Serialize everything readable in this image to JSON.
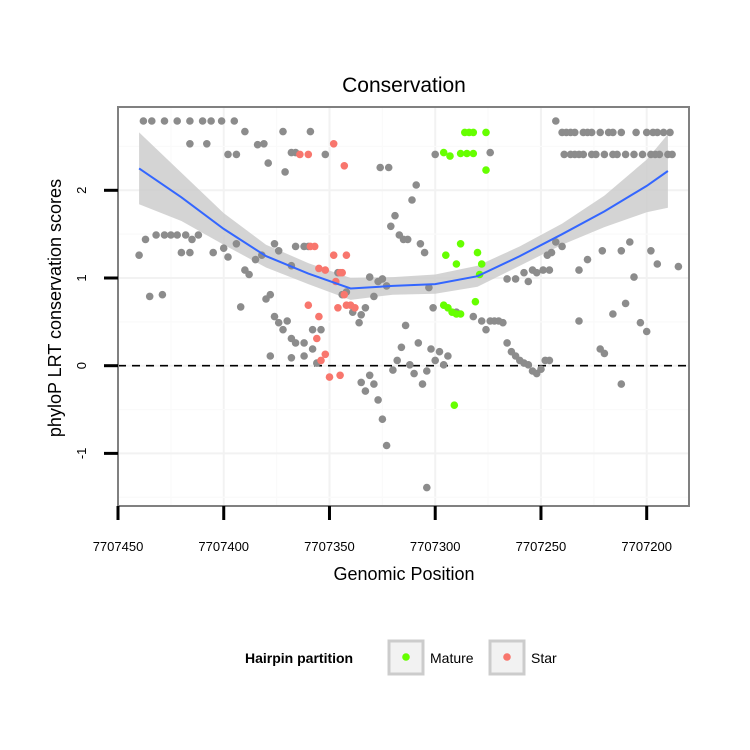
{
  "chart_data": {
    "type": "scatter",
    "title": "Conservation",
    "xlabel": "Genomic Position",
    "ylabel": "phyloP LRT conservation scores",
    "xlim": [
      7707450,
      7707180
    ],
    "x_reversed": true,
    "ylim": [
      -1.6,
      2.95
    ],
    "x_ticks": [
      7707450,
      7707400,
      7707350,
      7707300,
      7707250,
      7707200
    ],
    "y_ticks": [
      -1,
      0,
      1,
      2
    ],
    "grid": true,
    "reference_line": {
      "y": 0,
      "style": "dashed"
    },
    "legend": {
      "title": "Hairpin partition",
      "placement": "bottom",
      "entries": [
        {
          "label": "Mature",
          "color": "#66ff00"
        },
        {
          "label": "Star",
          "color": "#f8766d"
        }
      ]
    },
    "colors": {
      "other": "#8c8c8c",
      "mature": "#66ff00",
      "star": "#f8766d",
      "smooth": "#3366ff",
      "ribbon": "#cccccc"
    },
    "smooth_curve": {
      "x": [
        7707440,
        7707420,
        7707400,
        7707380,
        7707360,
        7707340,
        7707320,
        7707300,
        7707280,
        7707260,
        7707240,
        7707220,
        7707200,
        7707190
      ],
      "y": [
        2.25,
        1.92,
        1.56,
        1.25,
        1.05,
        0.88,
        0.91,
        0.93,
        1.02,
        1.25,
        1.5,
        1.76,
        2.05,
        2.22
      ],
      "lower": [
        1.84,
        1.65,
        1.38,
        1.12,
        0.93,
        0.75,
        0.81,
        0.82,
        0.9,
        1.14,
        1.38,
        1.58,
        1.75,
        1.8
      ],
      "upper": [
        2.66,
        2.2,
        1.74,
        1.38,
        1.17,
        1.0,
        1.01,
        1.04,
        1.14,
        1.36,
        1.62,
        1.94,
        2.35,
        2.64
      ]
    },
    "series": [
      {
        "name": "",
        "points": [
          [
            7707438,
            2.79
          ],
          [
            7707434,
            2.79
          ],
          [
            7707428,
            2.79
          ],
          [
            7707422,
            2.79
          ],
          [
            7707416,
            2.79
          ],
          [
            7707410,
            2.79
          ],
          [
            7707406,
            2.79
          ],
          [
            7707401,
            2.79
          ],
          [
            7707395,
            2.79
          ],
          [
            7707440,
            1.26
          ],
          [
            7707437,
            1.44
          ],
          [
            7707435,
            0.79
          ],
          [
            7707432,
            1.49
          ],
          [
            7707428,
            1.49
          ],
          [
            7707425,
            1.49
          ],
          [
            7707422,
            1.49
          ],
          [
            7707418,
            1.49
          ],
          [
            7707415,
            1.44
          ],
          [
            7707412,
            1.49
          ],
          [
            7707429,
            0.81
          ],
          [
            7707420,
            1.29
          ],
          [
            7707416,
            1.29
          ],
          [
            7707405,
            1.29
          ],
          [
            7707400,
            1.34
          ],
          [
            7707398,
            1.24
          ],
          [
            7707394,
            1.39
          ],
          [
            7707416,
            2.53
          ],
          [
            7707408,
            2.53
          ],
          [
            7707398,
            2.41
          ],
          [
            7707394,
            2.41
          ],
          [
            7707390,
            2.67
          ],
          [
            7707384,
            2.52
          ],
          [
            7707381,
            2.53
          ],
          [
            7707372,
            2.67
          ],
          [
            7707368,
            2.43
          ],
          [
            7707366,
            2.43
          ],
          [
            7707359,
            2.67
          ],
          [
            7707352,
            2.41
          ],
          [
            7707392,
            0.67
          ],
          [
            7707390,
            1.09
          ],
          [
            7707388,
            1.04
          ],
          [
            7707385,
            1.21
          ],
          [
            7707382,
            1.26
          ],
          [
            7707380,
            0.76
          ],
          [
            7707379,
            2.31
          ],
          [
            7707376,
            1.39
          ],
          [
            7707374,
            1.31
          ],
          [
            7707371,
            2.21
          ],
          [
            7707368,
            1.14
          ],
          [
            7707366,
            1.36
          ],
          [
            7707362,
            1.36
          ],
          [
            7707360,
            1.36
          ],
          [
            7707378,
            0.81
          ],
          [
            7707376,
            0.56
          ],
          [
            7707374,
            0.49
          ],
          [
            7707372,
            0.41
          ],
          [
            7707370,
            0.51
          ],
          [
            7707368,
            0.31
          ],
          [
            7707366,
            0.26
          ],
          [
            7707362,
            0.26
          ],
          [
            7707358,
            0.19
          ],
          [
            7707378,
            0.11
          ],
          [
            7707368,
            0.09
          ],
          [
            7707362,
            0.11
          ],
          [
            7707358,
            0.41
          ],
          [
            7707354,
            0.41
          ],
          [
            7707356,
            0.03
          ],
          [
            7707346,
            1.06
          ],
          [
            7707344,
            0.81
          ],
          [
            7707342,
            0.84
          ],
          [
            7707339,
            0.61
          ],
          [
            7707336,
            0.49
          ],
          [
            7707335,
            0.58
          ],
          [
            7707333,
            0.66
          ],
          [
            7707331,
            1.01
          ],
          [
            7707329,
            0.79
          ],
          [
            7707327,
            0.96
          ],
          [
            7707325,
            0.99
          ],
          [
            7707323,
            0.91
          ],
          [
            7707321,
            1.59
          ],
          [
            7707319,
            1.71
          ],
          [
            7707317,
            1.49
          ],
          [
            7707315,
            1.44
          ],
          [
            7707313,
            1.44
          ],
          [
            7707311,
            1.89
          ],
          [
            7707309,
            2.06
          ],
          [
            7707307,
            1.39
          ],
          [
            7707305,
            1.29
          ],
          [
            7707303,
            0.89
          ],
          [
            7707301,
            0.66
          ],
          [
            7707335,
            -0.19
          ],
          [
            7707333,
            -0.29
          ],
          [
            7707331,
            -0.11
          ],
          [
            7707329,
            -0.21
          ],
          [
            7707327,
            -0.39
          ],
          [
            7707325,
            -0.61
          ],
          [
            7707323,
            -0.91
          ],
          [
            7707320,
            -0.05
          ],
          [
            7707318,
            0.06
          ],
          [
            7707316,
            0.21
          ],
          [
            7707314,
            0.46
          ],
          [
            7707312,
            0.01
          ],
          [
            7707310,
            -0.09
          ],
          [
            7707308,
            0.26
          ],
          [
            7707306,
            -0.21
          ],
          [
            7707304,
            -0.06
          ],
          [
            7707302,
            0.19
          ],
          [
            7707300,
            0.06
          ],
          [
            7707298,
            0.16
          ],
          [
            7707296,
            0.01
          ],
          [
            7707294,
            0.11
          ],
          [
            7707304,
            -1.39
          ],
          [
            7707326,
            2.26
          ],
          [
            7707322,
            2.26
          ],
          [
            7707300,
            2.41
          ],
          [
            7707290,
            0.61
          ],
          [
            7707282,
            0.56
          ],
          [
            7707278,
            0.51
          ],
          [
            7707276,
            0.41
          ],
          [
            7707274,
            0.51
          ],
          [
            7707272,
            0.51
          ],
          [
            7707270,
            0.51
          ],
          [
            7707268,
            0.49
          ],
          [
            7707266,
            0.26
          ],
          [
            7707264,
            0.16
          ],
          [
            7707262,
            0.11
          ],
          [
            7707260,
            0.06
          ],
          [
            7707258,
            0.03
          ],
          [
            7707256,
            0.01
          ],
          [
            7707254,
            -0.06
          ],
          [
            7707252,
            -0.09
          ],
          [
            7707250,
            -0.04
          ],
          [
            7707248,
            0.06
          ],
          [
            7707246,
            0.06
          ],
          [
            7707266,
            0.99
          ],
          [
            7707262,
            0.99
          ],
          [
            7707258,
            1.06
          ],
          [
            7707256,
            0.96
          ],
          [
            7707254,
            1.09
          ],
          [
            7707252,
            1.06
          ],
          [
            7707249,
            1.09
          ],
          [
            7707246,
            1.09
          ],
          [
            7707247,
            1.26
          ],
          [
            7707245,
            1.29
          ],
          [
            7707243,
            1.41
          ],
          [
            7707240,
            1.36
          ],
          [
            7707232,
            1.09
          ],
          [
            7707228,
            1.21
          ],
          [
            7707221,
            1.31
          ],
          [
            7707212,
            1.31
          ],
          [
            7707208,
            1.41
          ],
          [
            7707198,
            1.31
          ],
          [
            7707195,
            1.16
          ],
          [
            7707185,
            1.13
          ],
          [
            7707274,
            2.43
          ],
          [
            7707243,
            2.79
          ],
          [
            7707240,
            2.66
          ],
          [
            7707238,
            2.66
          ],
          [
            7707236,
            2.66
          ],
          [
            7707234,
            2.66
          ],
          [
            7707230,
            2.66
          ],
          [
            7707228,
            2.66
          ],
          [
            7707226,
            2.66
          ],
          [
            7707222,
            2.66
          ],
          [
            7707218,
            2.66
          ],
          [
            7707216,
            2.66
          ],
          [
            7707212,
            2.66
          ],
          [
            7707205,
            2.66
          ],
          [
            7707200,
            2.66
          ],
          [
            7707197,
            2.66
          ],
          [
            7707195,
            2.66
          ],
          [
            7707192,
            2.66
          ],
          [
            7707189,
            2.66
          ],
          [
            7707239,
            2.41
          ],
          [
            7707236,
            2.41
          ],
          [
            7707234,
            2.41
          ],
          [
            7707232,
            2.41
          ],
          [
            7707230,
            2.41
          ],
          [
            7707226,
            2.41
          ],
          [
            7707224,
            2.41
          ],
          [
            7707220,
            2.41
          ],
          [
            7707216,
            2.41
          ],
          [
            7707214,
            2.41
          ],
          [
            7707210,
            2.41
          ],
          [
            7707206,
            2.41
          ],
          [
            7707202,
            2.41
          ],
          [
            7707198,
            2.41
          ],
          [
            7707196,
            2.41
          ],
          [
            7707194,
            2.41
          ],
          [
            7707190,
            2.41
          ],
          [
            7707188,
            2.41
          ],
          [
            7707232,
            0.51
          ],
          [
            7707222,
            0.19
          ],
          [
            7707220,
            0.14
          ],
          [
            7707216,
            0.59
          ],
          [
            7707210,
            0.71
          ],
          [
            7707206,
            1.01
          ],
          [
            7707203,
            0.49
          ],
          [
            7707200,
            0.39
          ],
          [
            7707212,
            -0.21
          ]
        ]
      },
      {
        "name": "Mature",
        "points": [
          [
            7707296,
            2.43
          ],
          [
            7707293,
            2.39
          ],
          [
            7707288,
            2.42
          ],
          [
            7707285,
            2.42
          ],
          [
            7707282,
            2.42
          ],
          [
            7707286,
            2.66
          ],
          [
            7707284,
            2.66
          ],
          [
            7707282,
            2.66
          ],
          [
            7707276,
            2.66
          ],
          [
            7707276,
            2.23
          ],
          [
            7707295,
            1.26
          ],
          [
            7707288,
            1.39
          ],
          [
            7707280,
            1.29
          ],
          [
            7707290,
            1.16
          ],
          [
            7707278,
            1.16
          ],
          [
            7707279,
            1.04
          ],
          [
            7707296,
            0.69
          ],
          [
            7707294,
            0.66
          ],
          [
            7707292,
            0.61
          ],
          [
            7707290,
            0.59
          ],
          [
            7707288,
            0.59
          ],
          [
            7707281,
            0.73
          ],
          [
            7707291,
            -0.45
          ]
        ]
      },
      {
        "name": "Star",
        "points": [
          [
            7707364,
            2.41
          ],
          [
            7707360,
            2.41
          ],
          [
            7707348,
            2.53
          ],
          [
            7707343,
            2.28
          ],
          [
            7707359,
            1.36
          ],
          [
            7707357,
            1.36
          ],
          [
            7707355,
            1.11
          ],
          [
            7707352,
            1.09
          ],
          [
            7707348,
            1.26
          ],
          [
            7707345,
            1.06
          ],
          [
            7707342,
            1.26
          ],
          [
            7707343,
            0.81
          ],
          [
            7707347,
            0.96
          ],
          [
            7707344,
            1.06
          ],
          [
            7707360,
            0.69
          ],
          [
            7707355,
            0.56
          ],
          [
            7707346,
            0.66
          ],
          [
            7707342,
            0.69
          ],
          [
            7707340,
            0.69
          ],
          [
            7707338,
            0.66
          ],
          [
            7707356,
            0.31
          ],
          [
            7707354,
            0.06
          ],
          [
            7707352,
            0.13
          ],
          [
            7707350,
            -0.13
          ],
          [
            7707345,
            -0.11
          ]
        ]
      }
    ]
  }
}
